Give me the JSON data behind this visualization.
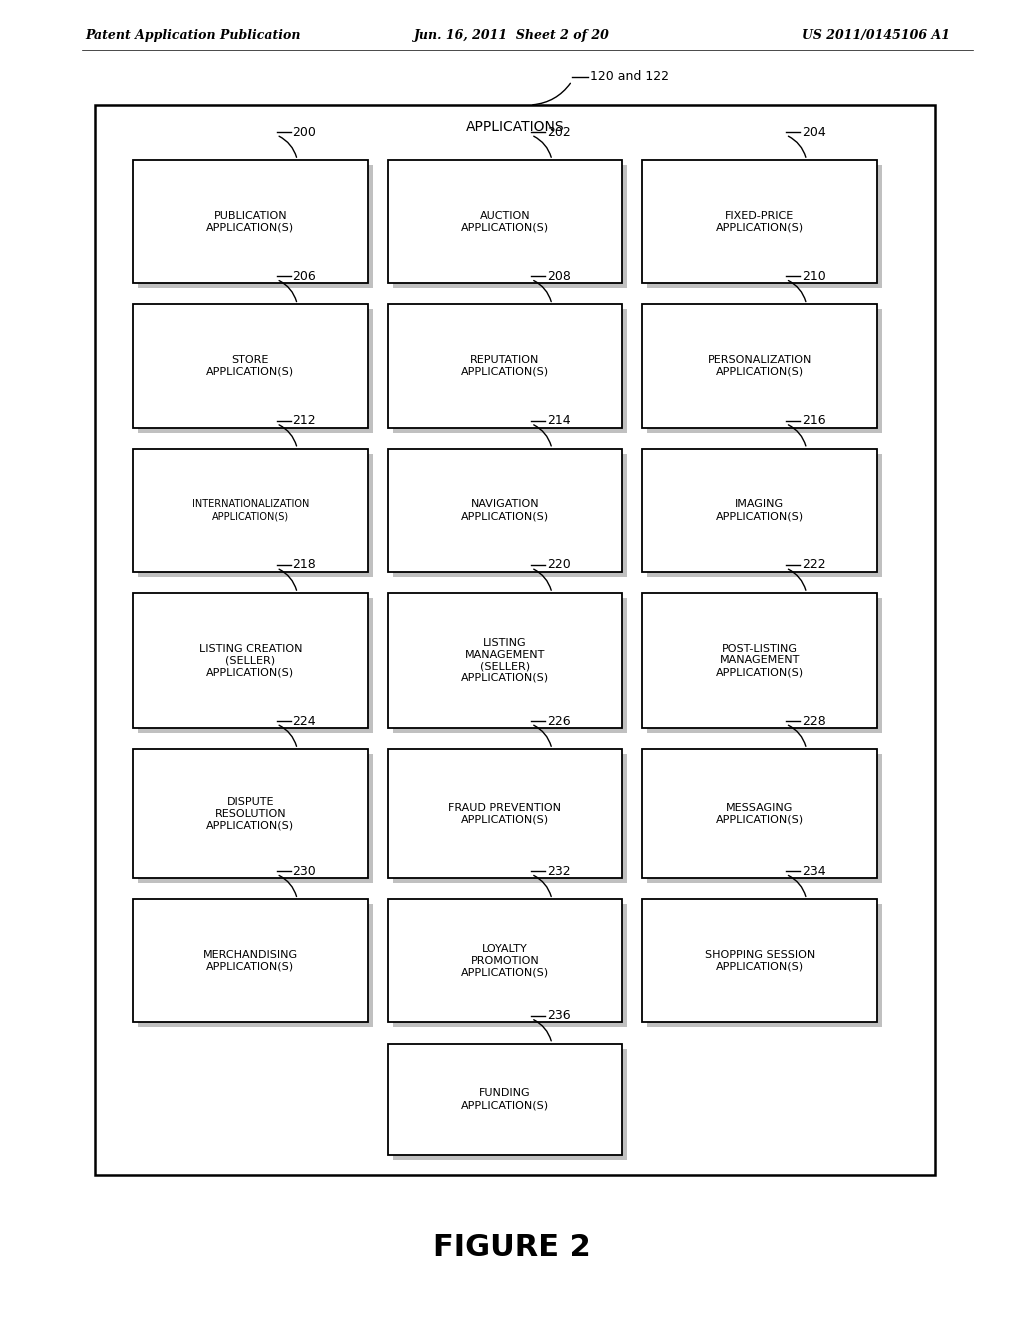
{
  "background_color": "#ffffff",
  "header_left": "Patent Application Publication",
  "header_center": "Jun. 16, 2011  Sheet 2 of 20",
  "header_right": "US 2011/0145106 A1",
  "figure_label": "FIGURE 2",
  "outer_box_label": "APPLICATIONS",
  "outer_box_ref": "120 and 122",
  "boxes": [
    {
      "id": "200",
      "label": "PUBLICATION\nAPPLICATION(S)",
      "col": 0,
      "row": 0
    },
    {
      "id": "202",
      "label": "AUCTION\nAPPLICATION(S)",
      "col": 1,
      "row": 0
    },
    {
      "id": "204",
      "label": "FIXED-PRICE\nAPPLICATION(S)",
      "col": 2,
      "row": 0
    },
    {
      "id": "206",
      "label": "STORE\nAPPLICATION(S)",
      "col": 0,
      "row": 1
    },
    {
      "id": "208",
      "label": "REPUTATION\nAPPLICATION(S)",
      "col": 1,
      "row": 1
    },
    {
      "id": "210",
      "label": "PERSONALIZATION\nAPPLICATION(S)",
      "col": 2,
      "row": 1
    },
    {
      "id": "212",
      "label": "INTERNATIONALIZATION\nAPPLICATION(S)",
      "col": 0,
      "row": 2
    },
    {
      "id": "214",
      "label": "NAVIGATION\nAPPLICATION(S)",
      "col": 1,
      "row": 2
    },
    {
      "id": "216",
      "label": "IMAGING\nAPPLICATION(S)",
      "col": 2,
      "row": 2
    },
    {
      "id": "218",
      "label": "LISTING CREATION\n(SELLER)\nAPPLICATION(S)",
      "col": 0,
      "row": 3
    },
    {
      "id": "220",
      "label": "LISTING\nMANAGEMENT\n(SELLER)\nAPPLICATION(S)",
      "col": 1,
      "row": 3
    },
    {
      "id": "222",
      "label": "POST-LISTING\nMANAGEMENT\nAPPLICATION(S)",
      "col": 2,
      "row": 3
    },
    {
      "id": "224",
      "label": "DISPUTE\nRESOLUTION\nAPPLICATION(S)",
      "col": 0,
      "row": 4
    },
    {
      "id": "226",
      "label": "FRAUD PREVENTION\nAPPLICATION(S)",
      "col": 1,
      "row": 4
    },
    {
      "id": "228",
      "label": "MESSAGING\nAPPLICATION(S)",
      "col": 2,
      "row": 4
    },
    {
      "id": "230",
      "label": "MERCHANDISING\nAPPLICATION(S)",
      "col": 0,
      "row": 5
    },
    {
      "id": "232",
      "label": "LOYALTY\nPROMOTION\nAPPLICATION(S)",
      "col": 1,
      "row": 5
    },
    {
      "id": "234",
      "label": "SHOPPING SESSION\nAPPLICATION(S)",
      "col": 2,
      "row": 5
    },
    {
      "id": "236",
      "label": "FUNDING\nAPPLICATION(S)",
      "col": 1,
      "row": 6
    }
  ]
}
